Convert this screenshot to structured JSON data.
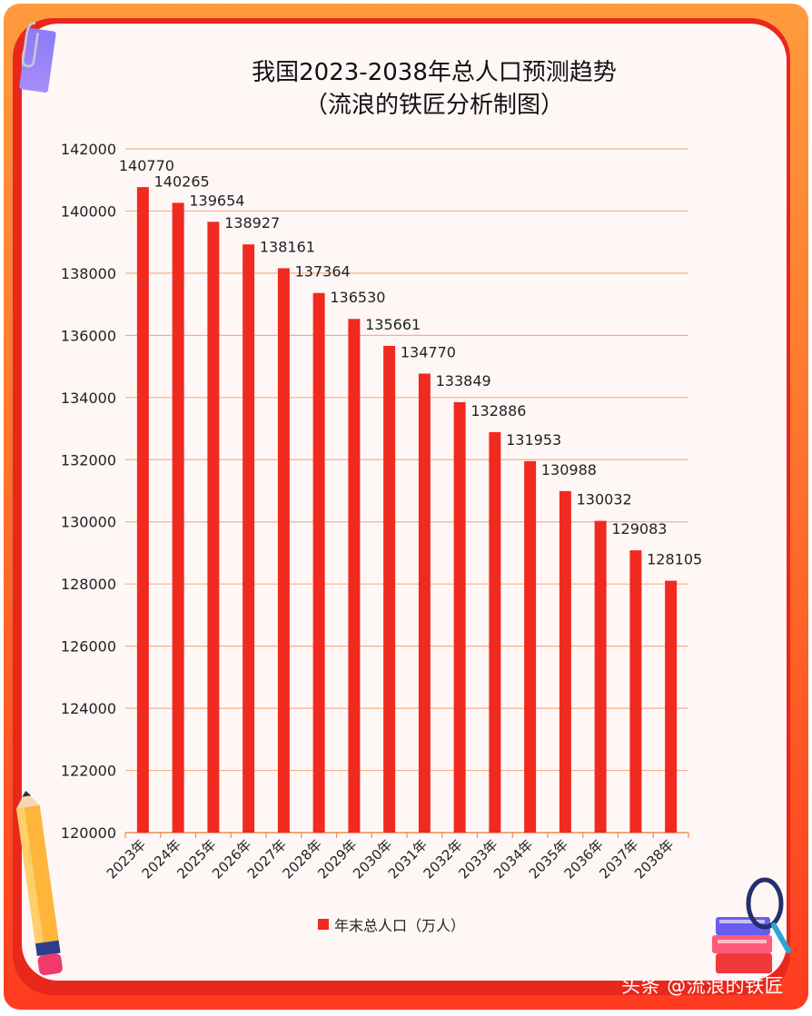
{
  "chart_data": {
    "type": "bar",
    "title": "我国2023-2038年总人口预测趋势",
    "subtitle": "（流浪的铁匠分析制图）",
    "categories": [
      "2023年",
      "2024年",
      "2025年",
      "2026年",
      "2027年",
      "2028年",
      "2029年",
      "2030年",
      "2031年",
      "2032年",
      "2033年",
      "2034年",
      "2035年",
      "2036年",
      "2037年",
      "2038年"
    ],
    "series": [
      {
        "name": "年末总人口（万人）",
        "values": [
          140770,
          140265,
          139654,
          138927,
          138161,
          137364,
          136530,
          135661,
          134770,
          133849,
          132886,
          131953,
          130988,
          130032,
          129083,
          128105
        ]
      }
    ],
    "ylim": [
      120000,
      142000
    ],
    "yticks": [
      120000,
      122000,
      124000,
      126000,
      128000,
      130000,
      132000,
      134000,
      136000,
      138000,
      140000,
      142000
    ],
    "grid": true,
    "legend_position": "bottom",
    "bar_color": "#f02a1f",
    "grid_color": "#f5b08a",
    "axis_color": "#f08a4e"
  },
  "watermark": "头条 @流浪的铁匠",
  "decorations": [
    "paperclip-icon",
    "pencil-icon",
    "books-magnifier-icon"
  ]
}
